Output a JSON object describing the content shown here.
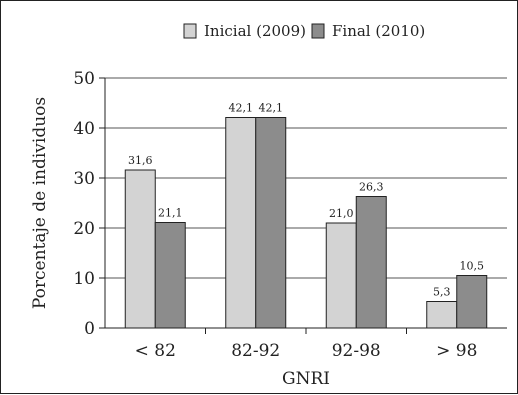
{
  "chart_data": {
    "type": "bar",
    "categories": [
      "< 82",
      "82-92",
      "92-98",
      "> 98"
    ],
    "series": [
      {
        "name": "Inicial (2009)",
        "values": [
          31.6,
          42.1,
          21.0,
          5.3
        ],
        "labels": [
          "31,6",
          "42,1",
          "21,0",
          "5,3"
        ],
        "color": "#d3d3d3"
      },
      {
        "name": "Final (2010)",
        "values": [
          21.1,
          42.1,
          26.3,
          10.5
        ],
        "labels": [
          "21,1",
          "42,1",
          "26,3",
          "10,5"
        ],
        "color": "#8c8c8c"
      }
    ],
    "xlabel": "GNRI",
    "ylabel": "Porcentaje de individuos",
    "ylim": [
      0,
      50
    ],
    "yticks": [
      0,
      10,
      20,
      30,
      40,
      50
    ],
    "grid": true,
    "legend_position": "top"
  }
}
